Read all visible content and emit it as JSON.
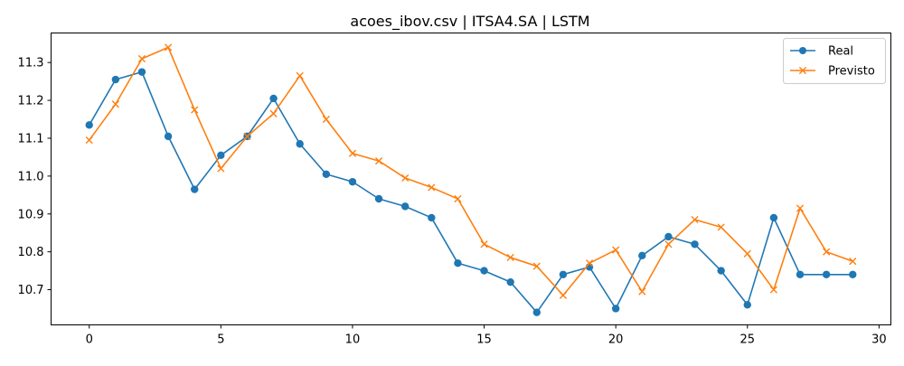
{
  "colors": {
    "real": "#1f77b4",
    "previsto": "#ff7f0e",
    "axis": "#000000",
    "legend_border": "#cccccc"
  },
  "chart_data": {
    "type": "line",
    "title": "acoes_ibov.csv | ITSA4.SA | LSTM",
    "xlabel": "",
    "ylabel": "",
    "x": [
      0,
      1,
      2,
      3,
      4,
      5,
      6,
      7,
      8,
      9,
      10,
      11,
      12,
      13,
      14,
      15,
      16,
      17,
      18,
      19,
      20,
      21,
      22,
      23,
      24,
      25,
      26,
      27,
      28,
      29
    ],
    "xlim": [
      -1.45,
      30.45
    ],
    "ylim": [
      10.607,
      11.378
    ],
    "xticks": [
      0,
      5,
      10,
      15,
      20,
      25,
      30
    ],
    "yticks": [
      10.7,
      10.8,
      10.9,
      11.0,
      11.1,
      11.2,
      11.3
    ],
    "xtick_labels": [
      "0",
      "5",
      "10",
      "15",
      "20",
      "25",
      "30"
    ],
    "ytick_labels": [
      "10.7",
      "10.8",
      "10.9",
      "11.0",
      "11.1",
      "11.2",
      "11.3"
    ],
    "grid": false,
    "legend_position": "top-right",
    "series": [
      {
        "name": "Real",
        "marker": "circle",
        "color": "#1f77b4",
        "values": [
          11.135,
          11.255,
          11.275,
          11.105,
          10.965,
          11.055,
          11.105,
          11.205,
          11.085,
          11.005,
          10.985,
          10.94,
          10.92,
          10.89,
          10.77,
          10.75,
          10.72,
          10.64,
          10.74,
          10.76,
          10.65,
          10.79,
          10.84,
          10.82,
          10.75,
          10.66,
          10.89,
          10.74,
          10.74,
          10.74
        ]
      },
      {
        "name": "Previsto",
        "marker": "x",
        "color": "#ff7f0e",
        "values": [
          11.095,
          11.19,
          11.31,
          11.34,
          11.175,
          11.02,
          11.105,
          11.165,
          11.265,
          11.15,
          11.06,
          11.04,
          10.995,
          10.97,
          10.94,
          10.82,
          10.785,
          10.762,
          10.685,
          10.77,
          10.805,
          10.695,
          10.82,
          10.885,
          10.865,
          10.795,
          10.7,
          10.915,
          10.8,
          10.775
        ]
      }
    ]
  }
}
